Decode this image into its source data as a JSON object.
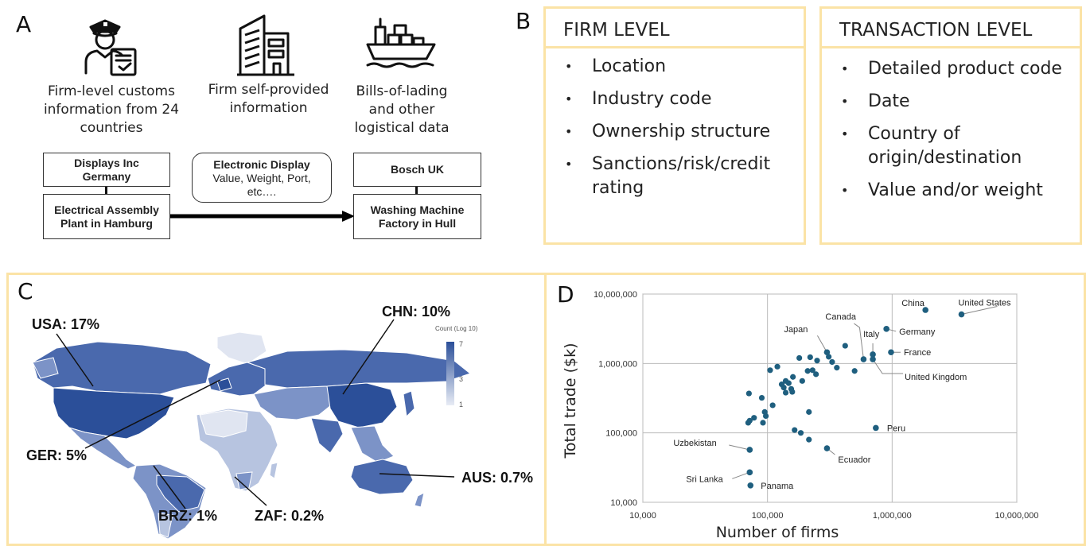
{
  "panels": {
    "a": "A",
    "b": "B",
    "c": "C",
    "d": "D"
  },
  "panel_a": {
    "sources": [
      {
        "icon": "customs-officer-icon",
        "text": "Firm-level customs information from 24 countries"
      },
      {
        "icon": "office-building-icon",
        "text": "Firm self-provided information"
      },
      {
        "icon": "cargo-ship-icon",
        "text": "Bills-of-lading and other logistical data"
      }
    ],
    "seller_parent": "Displays Inc Germany",
    "seller_plant": "Electrical Assembly Plant in Hamburg",
    "shipment_title": "Electronic Display",
    "shipment_details": "Value, Weight, Port, etc….",
    "buyer_parent": "Bosch UK",
    "buyer_plant": "Washing Machine Factory in Hull"
  },
  "panel_b": {
    "firm_level": {
      "title": "FIRM LEVEL",
      "items": [
        "Location",
        "Industry code",
        "Ownership structure",
        "Sanctions/risk/credit rating"
      ]
    },
    "transaction_level": {
      "title": "TRANSACTION LEVEL",
      "items": [
        "Detailed product code",
        "Date",
        "Country of origin/destination",
        "Value and/or weight"
      ]
    }
  },
  "panel_c": {
    "legend_title": "Count (Log 10)",
    "legend_ticks": [
      "7",
      "3",
      "1"
    ],
    "colors": {
      "darkest": "#2b4f99",
      "dark": "#4a69ad",
      "mid": "#7c93c7",
      "light": "#b7c4e0",
      "lightest": "#e0e5f1",
      "frame": "#fbe3a6",
      "point": "#1f5f7f"
    },
    "callouts": [
      {
        "id": "usa",
        "text": "USA: 17%"
      },
      {
        "id": "chn",
        "text": "CHN: 10%"
      },
      {
        "id": "ger",
        "text": "GER: 5%"
      },
      {
        "id": "aus",
        "text": "AUS: 0.7%"
      },
      {
        "id": "brz",
        "text": "BRZ: 1%"
      },
      {
        "id": "zaf",
        "text": "ZAF: 0.2%"
      }
    ]
  },
  "chart_data": {
    "type": "scatter",
    "title": "",
    "xlabel": "Number of firms",
    "ylabel": "Total trade ($k)",
    "xscale": "log",
    "yscale": "log",
    "xlim": [
      10000,
      10000000
    ],
    "ylim": [
      10000,
      10000000
    ],
    "xticks": [
      "10,000",
      "100,000",
      "1,000,000",
      "10,000,000"
    ],
    "yticks": [
      "10,000,000",
      "1,000,000",
      "100,000",
      "10,000"
    ],
    "grid": true,
    "labeled_points": [
      {
        "label": "China",
        "x": 1850000,
        "y": 5900000
      },
      {
        "label": "United States",
        "x": 3600000,
        "y": 5100000
      },
      {
        "label": "Germany",
        "x": 900000,
        "y": 3150000
      },
      {
        "label": "Canada",
        "x": 590000,
        "y": 1150000
      },
      {
        "label": "Japan",
        "x": 300000,
        "y": 1450000
      },
      {
        "label": "Italy",
        "x": 700000,
        "y": 1350000
      },
      {
        "label": "France",
        "x": 980000,
        "y": 1450000
      },
      {
        "label": "United Kingdom",
        "x": 700000,
        "y": 1150000
      },
      {
        "label": "Peru",
        "x": 740000,
        "y": 118000
      },
      {
        "label": "Uzbekistan",
        "x": 72000,
        "y": 57000
      },
      {
        "label": "Ecuador",
        "x": 300000,
        "y": 60000
      },
      {
        "label": "Sri Lanka",
        "x": 72000,
        "y": 27000
      },
      {
        "label": "Panama",
        "x": 73000,
        "y": 17500
      }
    ],
    "other_points": [
      {
        "x": 70000,
        "y": 140000
      },
      {
        "x": 72000,
        "y": 150000
      },
      {
        "x": 71000,
        "y": 370000
      },
      {
        "x": 78000,
        "y": 165000
      },
      {
        "x": 90000,
        "y": 320000
      },
      {
        "x": 92000,
        "y": 140000
      },
      {
        "x": 95000,
        "y": 200000
      },
      {
        "x": 97000,
        "y": 175000
      },
      {
        "x": 105000,
        "y": 800000
      },
      {
        "x": 110000,
        "y": 250000
      },
      {
        "x": 120000,
        "y": 900000
      },
      {
        "x": 130000,
        "y": 500000
      },
      {
        "x": 135000,
        "y": 450000
      },
      {
        "x": 140000,
        "y": 380000
      },
      {
        "x": 140000,
        "y": 560000
      },
      {
        "x": 148000,
        "y": 520000
      },
      {
        "x": 155000,
        "y": 430000
      },
      {
        "x": 158000,
        "y": 390000
      },
      {
        "x": 160000,
        "y": 640000
      },
      {
        "x": 165000,
        "y": 110000
      },
      {
        "x": 180000,
        "y": 1200000
      },
      {
        "x": 185000,
        "y": 100000
      },
      {
        "x": 190000,
        "y": 560000
      },
      {
        "x": 210000,
        "y": 780000
      },
      {
        "x": 215000,
        "y": 200000
      },
      {
        "x": 215000,
        "y": 80000
      },
      {
        "x": 220000,
        "y": 1230000
      },
      {
        "x": 230000,
        "y": 800000
      },
      {
        "x": 245000,
        "y": 700000
      },
      {
        "x": 250000,
        "y": 1100000
      },
      {
        "x": 310000,
        "y": 1250000
      },
      {
        "x": 330000,
        "y": 1050000
      },
      {
        "x": 360000,
        "y": 870000
      },
      {
        "x": 420000,
        "y": 1800000
      },
      {
        "x": 500000,
        "y": 780000
      }
    ]
  }
}
